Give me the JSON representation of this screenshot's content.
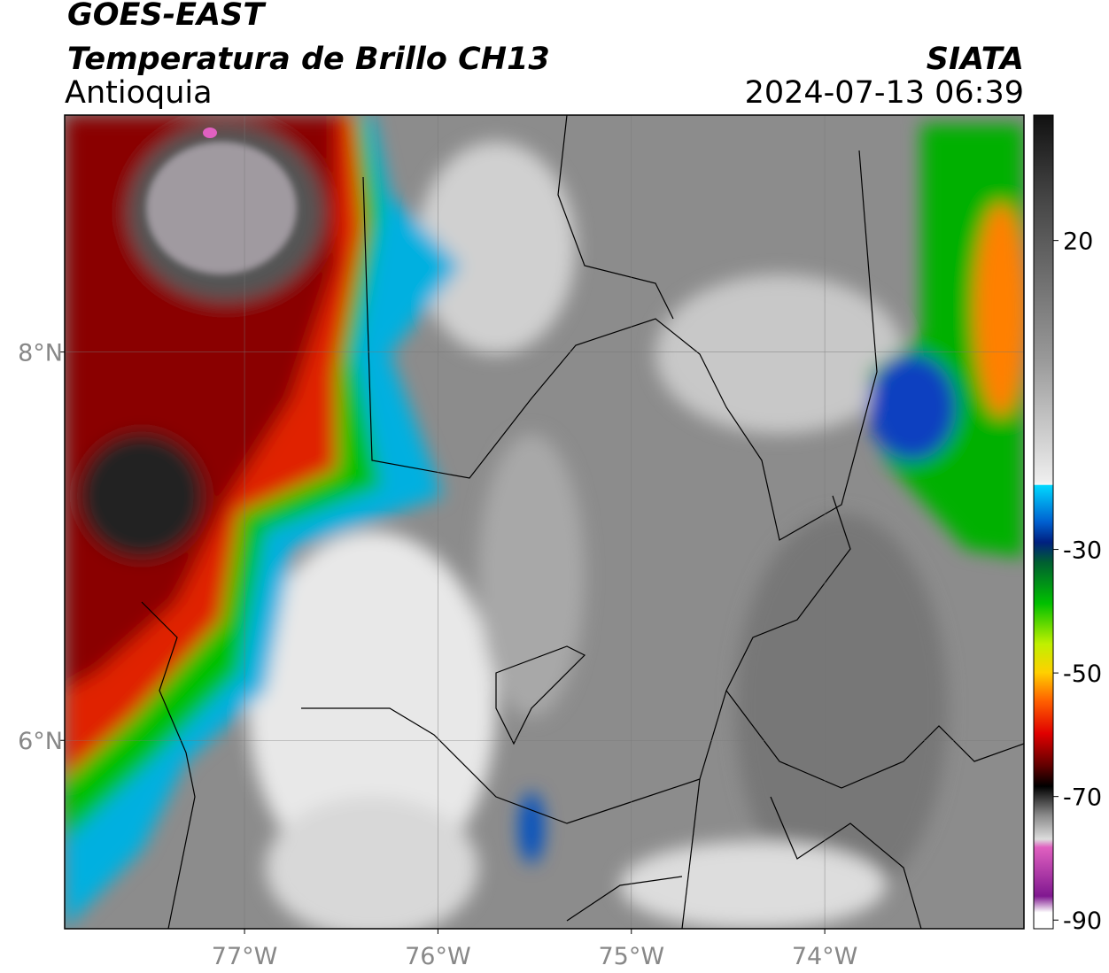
{
  "header": {
    "title": "GOES-EAST",
    "subtitle": "Temperatura de Brillo CH13",
    "region": "Antioquia",
    "source": "SIATA",
    "datetime": "2024-07-13 06:39"
  },
  "map": {
    "lonlim": [
      -77.93,
      -72.97
    ],
    "latlim": [
      5.03,
      9.22
    ],
    "lon_ticks": [
      {
        "value": -77,
        "label": "77°W"
      },
      {
        "value": -76,
        "label": "76°W"
      },
      {
        "value": -75,
        "label": "75°W"
      },
      {
        "value": -74,
        "label": "74°W"
      }
    ],
    "lat_ticks": [
      {
        "value": 8,
        "label": "8°N"
      },
      {
        "value": 6,
        "label": "6°N"
      }
    ]
  },
  "colorbar": {
    "lim": [
      -91.4,
      40.3
    ],
    "ticks": [
      20,
      -30,
      -50,
      -70,
      -90
    ]
  }
}
